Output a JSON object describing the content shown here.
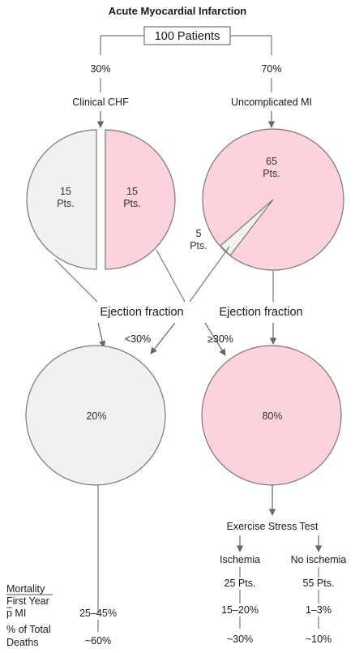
{
  "title": "Acute Myocardial Infarction",
  "root": {
    "label": "100 Patients"
  },
  "branches": {
    "left": {
      "percent": "30%",
      "label": "Clinical CHF"
    },
    "right": {
      "percent": "70%",
      "label": "Uncomplicated MI"
    }
  },
  "top_circles": {
    "chf_low_count": "15",
    "chf_high_count": "15",
    "pts_label": "Pts.",
    "uncomplicated_main_count": "65",
    "uncomplicated_wedge_count": "5"
  },
  "ejection": {
    "left_label": "Ejection fraction",
    "right_label": "Ejection fraction",
    "low_threshold": "<30%",
    "high_threshold": "≥30%"
  },
  "bottom_circles": {
    "low_percent": "20%",
    "high_percent": "80%"
  },
  "stress_test": {
    "label": "Exercise Stress Test",
    "ischemia_label": "Ischemia",
    "no_ischemia_label": "No ischemia",
    "ischemia_pts": "25 Pts.",
    "no_ischemia_pts": "55 Pts."
  },
  "rows": {
    "mortality_line1": "Mortality",
    "mortality_line2": "First Year",
    "mortality_line3_p": "p",
    "mortality_line3_rest": " MI",
    "deaths_line1": "% of Total",
    "deaths_line2": "Deaths"
  },
  "mortality": {
    "low_ef": "25–45%",
    "ischemia": "15–20%",
    "no_ischemia": "1–3%"
  },
  "deaths": {
    "low_ef": "~60%",
    "ischemia": "~30%",
    "no_ischemia": "~10%"
  },
  "colors": {
    "pink": "#fcd3dc",
    "light_gray": "#f1f1f0",
    "stroke": "#777777",
    "arrow": "#666666"
  }
}
